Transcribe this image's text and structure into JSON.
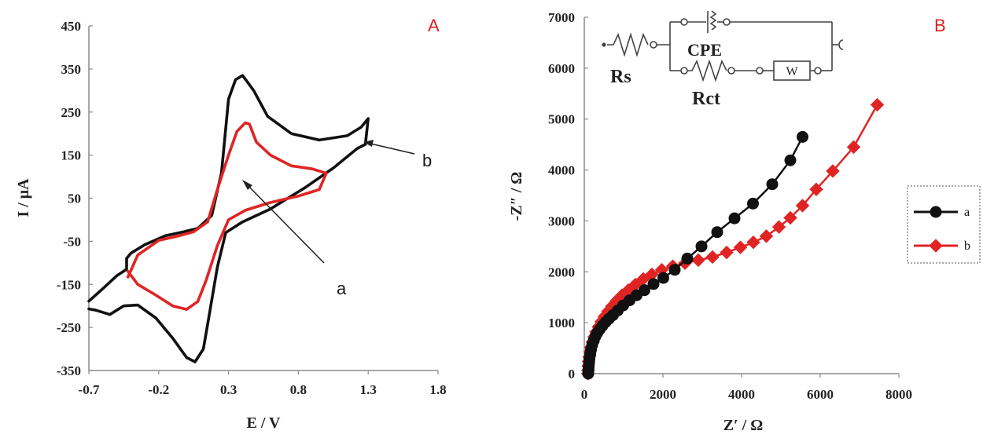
{
  "chart_data": [
    {
      "panel": "A",
      "type": "line",
      "xlabel": "E / V",
      "ylabel": "I / μA",
      "xlim": [
        -0.7,
        1.8
      ],
      "ylim": [
        -350,
        450
      ],
      "x_ticks": [
        "-0.7",
        "-0.2",
        "0.3",
        "0.8",
        "1.3",
        "1.8"
      ],
      "y_ticks": [
        "450",
        "350",
        "250",
        "150",
        "50",
        "-50",
        "-150",
        "-250",
        "-350"
      ],
      "grid": false,
      "series": [
        {
          "name": "b",
          "color": "#111111",
          "x": [
            -0.7,
            -0.6,
            -0.5,
            -0.43,
            -0.43,
            -0.4,
            -0.3,
            -0.15,
            -0.02,
            0.08,
            0.18,
            0.25,
            0.3,
            0.35,
            0.4,
            0.48,
            0.58,
            0.75,
            0.95,
            1.15,
            1.25,
            1.3,
            1.28,
            1.22,
            1.05,
            0.85,
            0.6,
            0.4,
            0.28,
            0.22,
            0.16,
            0.12,
            0.06,
            0.0,
            -0.1,
            -0.22,
            -0.35,
            -0.45,
            -0.55,
            -0.65,
            -0.7
          ],
          "y": [
            -189,
            -160,
            -130,
            -115,
            -90,
            -78,
            -58,
            -37,
            -28,
            -20,
            10,
            110,
            280,
            325,
            335,
            300,
            240,
            200,
            185,
            195,
            215,
            235,
            175,
            165,
            120,
            75,
            25,
            -5,
            -30,
            -110,
            -225,
            -300,
            -330,
            -320,
            -275,
            -228,
            -198,
            -200,
            -220,
            -210,
            -207
          ]
        },
        {
          "name": "a",
          "color": "#e02424",
          "x": [
            -0.42,
            -0.35,
            -0.2,
            -0.05,
            0.05,
            0.15,
            0.22,
            0.3,
            0.36,
            0.42,
            0.45,
            0.5,
            0.6,
            0.75,
            0.9,
            1.0,
            0.95,
            0.8,
            0.6,
            0.42,
            0.3,
            0.22,
            0.14,
            0.08,
            0.0,
            -0.1,
            -0.22,
            -0.35,
            -0.42
          ],
          "y": [
            -133,
            -82,
            -48,
            -37,
            -28,
            -5,
            70,
            150,
            205,
            225,
            222,
            180,
            150,
            125,
            118,
            108,
            70,
            55,
            40,
            22,
            0,
            -60,
            -140,
            -190,
            -208,
            -200,
            -175,
            -150,
            -120
          ]
        }
      ],
      "annotations": [
        "a",
        "b"
      ]
    },
    {
      "panel": "B",
      "type": "line",
      "xlabel": "Z′ / Ω",
      "ylabel": "-Z″ / Ω",
      "xlim": [
        0,
        8000
      ],
      "ylim": [
        0,
        7000
      ],
      "x_ticks": [
        "0",
        "2000",
        "4000",
        "6000",
        "8000"
      ],
      "y_ticks": [
        "0",
        "1000",
        "2000",
        "3000",
        "4000",
        "5000",
        "6000",
        "7000"
      ],
      "grid": false,
      "legend_position": "right",
      "series": [
        {
          "name": "a",
          "color": "#111111",
          "marker": "circle",
          "x": [
            100,
            105,
            110,
            120,
            130,
            150,
            170,
            200,
            240,
            280,
            330,
            390,
            460,
            540,
            630,
            730,
            850,
            990,
            1150,
            1330,
            1530,
            1760,
            2010,
            2300,
            2620,
            2980,
            3380,
            3820,
            4290,
            4780,
            5240,
            5550
          ],
          "y": [
            0,
            60,
            120,
            200,
            290,
            380,
            470,
            560,
            650,
            730,
            800,
            870,
            940,
            1010,
            1080,
            1150,
            1240,
            1340,
            1440,
            1540,
            1640,
            1760,
            1880,
            2040,
            2260,
            2500,
            2780,
            3050,
            3340,
            3720,
            4190,
            4650
          ]
        },
        {
          "name": "b",
          "color": "#e02424",
          "marker": "diamond",
          "x": [
            90,
            95,
            100,
            110,
            125,
            145,
            170,
            205,
            250,
            300,
            360,
            430,
            510,
            600,
            700,
            820,
            960,
            1120,
            1300,
            1500,
            1720,
            1970,
            2250,
            2560,
            2900,
            3260,
            3620,
            3970,
            4300,
            4630,
            4950,
            5240,
            5550,
            5900,
            6320,
            6850,
            7450
          ],
          "y": [
            0,
            70,
            150,
            240,
            330,
            430,
            520,
            620,
            720,
            820,
            920,
            1020,
            1120,
            1220,
            1320,
            1430,
            1540,
            1640,
            1750,
            1860,
            1950,
            2040,
            2110,
            2170,
            2230,
            2290,
            2380,
            2480,
            2580,
            2700,
            2880,
            3060,
            3300,
            3620,
            3980,
            4450,
            5280
          ]
        }
      ],
      "inset_circuit": {
        "labels": [
          "Rs",
          "CPE",
          "Rct",
          "W"
        ]
      }
    }
  ]
}
